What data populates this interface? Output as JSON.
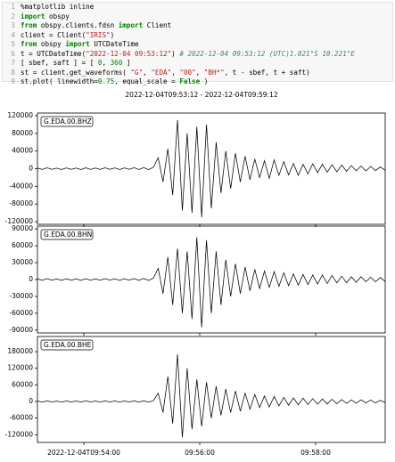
{
  "code": {
    "line_numbers": [
      "1",
      "2",
      "3",
      "4",
      "5",
      "6",
      "7",
      "8",
      "9"
    ],
    "lines": [
      [
        {
          "t": "%matplotlib inline",
          "s": "plain"
        }
      ],
      [
        {
          "t": "import",
          "s": "kw"
        },
        {
          "t": " obspy",
          "s": "plain"
        }
      ],
      [
        {
          "t": "from",
          "s": "kw"
        },
        {
          "t": " obspy.clients.fdsn ",
          "s": "plain"
        },
        {
          "t": "import",
          "s": "kw"
        },
        {
          "t": " Client",
          "s": "plain"
        }
      ],
      [
        {
          "t": "client = Client(",
          "s": "plain"
        },
        {
          "t": "\"IRIS\"",
          "s": "str"
        },
        {
          "t": ")",
          "s": "plain"
        }
      ],
      [
        {
          "t": "from",
          "s": "kw"
        },
        {
          "t": " obspy ",
          "s": "plain"
        },
        {
          "t": "import",
          "s": "kw"
        },
        {
          "t": " UTCDateTime",
          "s": "plain"
        }
      ],
      [
        {
          "t": "t = UTCDateTime(",
          "s": "plain"
        },
        {
          "t": "\"2022-12-04 09:53:12\"",
          "s": "str"
        },
        {
          "t": ") ",
          "s": "plain"
        },
        {
          "t": "# 2022-12-04 09:53:12 (UTC)1.021°S 10.221°E",
          "s": "com"
        }
      ],
      [
        {
          "t": "[ sbef, saft ] = [ ",
          "s": "plain"
        },
        {
          "t": "0",
          "s": "num"
        },
        {
          "t": ", ",
          "s": "plain"
        },
        {
          "t": "360",
          "s": "num"
        },
        {
          "t": " ]",
          "s": "plain"
        }
      ],
      [
        {
          "t": "st = client.get_waveforms( ",
          "s": "plain"
        },
        {
          "t": "\"G\"",
          "s": "str"
        },
        {
          "t": ", ",
          "s": "plain"
        },
        {
          "t": "\"EDA\"",
          "s": "str"
        },
        {
          "t": ", ",
          "s": "plain"
        },
        {
          "t": "\"00\"",
          "s": "str"
        },
        {
          "t": ", ",
          "s": "plain"
        },
        {
          "t": "\"BH*\"",
          "s": "str"
        },
        {
          "t": ", t - sbef, t + saft)",
          "s": "plain"
        }
      ],
      [
        {
          "t": "st.plot( linewidth=",
          "s": "plain"
        },
        {
          "t": "0.75",
          "s": "num"
        },
        {
          "t": ", equal_scale = ",
          "s": "plain"
        },
        {
          "t": "False",
          "s": "kw"
        },
        {
          "t": " )",
          "s": "plain"
        }
      ]
    ]
  },
  "chart_data": [
    {
      "type": "line",
      "title": "2022-12-04T09:53:12 - 2022-12-04T09:59:12",
      "label": "G.EDA.00.BHZ",
      "color": "#000000",
      "xlim": [
        "2022-12-04T09:53:12",
        "2022-12-04T09:59:12"
      ],
      "xticks": [
        "2022-12-04T09:54:00",
        {
          "value": "2022-12-04T09:56:00",
          "label": "09:56:00"
        },
        {
          "value": "2022-12-04T09:58:00",
          "label": "09:58:00"
        }
      ],
      "ylim": [
        -126000,
        126000
      ],
      "yticks": [
        -120000,
        -80000,
        -40000,
        0,
        40000,
        80000,
        120000
      ],
      "values": [
        1500,
        -1800,
        2000,
        -1500,
        1200,
        -2000,
        1800,
        -1600,
        1500,
        -1900,
        2000,
        -1700,
        1600,
        -1800,
        2100,
        -1500,
        1700,
        -2000,
        1800,
        -1600,
        2200,
        -1900,
        2500,
        -2200,
        3000,
        25000,
        -30000,
        45000,
        -60000,
        110000,
        -95000,
        80000,
        -100000,
        95000,
        -110000,
        100000,
        -90000,
        60000,
        -55000,
        40000,
        -45000,
        35000,
        -30000,
        28000,
        -25000,
        22000,
        -20000,
        18000,
        -22000,
        20000,
        -15000,
        16000,
        -14000,
        12000,
        -15000,
        10000,
        -12000,
        11000,
        -9000,
        10000,
        -8000,
        9000,
        -7000,
        8000,
        -6000,
        7000,
        -5000,
        6000,
        -5000,
        5000,
        -4000,
        4000,
        -4000
      ]
    },
    {
      "type": "line",
      "label": "G.EDA.00.BHN",
      "color": "#000000",
      "xlim": [
        "2022-12-04T09:53:12",
        "2022-12-04T09:59:12"
      ],
      "xticks": [
        "2022-12-04T09:54:00",
        {
          "value": "2022-12-04T09:56:00",
          "label": "09:56:00"
        },
        {
          "value": "2022-12-04T09:58:00",
          "label": "09:58:00"
        }
      ],
      "ylim": [
        -95000,
        95000
      ],
      "yticks": [
        -90000,
        -60000,
        -30000,
        0,
        30000,
        60000,
        90000
      ],
      "values": [
        1200,
        -1400,
        1500,
        -1200,
        1000,
        -1500,
        1400,
        -1300,
        1200,
        -1500,
        1600,
        -1300,
        1200,
        -1400,
        1600,
        -1200,
        1300,
        -1500,
        1400,
        -1200,
        1700,
        -1500,
        2000,
        -1700,
        2500,
        20000,
        -25000,
        40000,
        -45000,
        55000,
        -60000,
        50000,
        -70000,
        75000,
        -85000,
        70000,
        -60000,
        50000,
        -45000,
        35000,
        -30000,
        28000,
        -25000,
        22000,
        -20000,
        18000,
        -16000,
        15000,
        -14000,
        14000,
        -12000,
        12000,
        -11000,
        10000,
        -10000,
        9000,
        -9000,
        8000,
        -8000,
        8000,
        -7000,
        7000,
        -6000,
        6000,
        -6000,
        5000,
        -5000,
        5000,
        -4000,
        4000,
        -4000,
        3500,
        -3500
      ]
    },
    {
      "type": "line",
      "label": "G.EDA.00.BHE",
      "color": "#000000",
      "xlim": [
        "2022-12-04T09:53:12",
        "2022-12-04T09:59:12"
      ],
      "xticks": [
        "2022-12-04T09:54:00",
        {
          "value": "2022-12-04T09:56:00",
          "label": "09:56:00"
        },
        {
          "value": "2022-12-04T09:58:00",
          "label": "09:58:00"
        }
      ],
      "ylim": [
        -148000,
        235000
      ],
      "yticks": [
        -120000,
        -60000,
        0,
        60000,
        120000,
        180000
      ],
      "values": [
        1500,
        -1800,
        2000,
        -1500,
        1200,
        -2000,
        1800,
        -1600,
        1500,
        -1900,
        2000,
        -1700,
        1600,
        -1800,
        2100,
        -1500,
        1700,
        -2000,
        1800,
        -1600,
        2200,
        -1900,
        2500,
        -2200,
        3000,
        30000,
        -40000,
        90000,
        -80000,
        170000,
        -130000,
        120000,
        -100000,
        80000,
        -90000,
        70000,
        -60000,
        55000,
        -50000,
        45000,
        -40000,
        38000,
        -35000,
        30000,
        -28000,
        25000,
        -22000,
        20000,
        -20000,
        18000,
        -16000,
        15000,
        -14000,
        13000,
        -12000,
        12000,
        -11000,
        10000,
        -10000,
        9000,
        -9000,
        8000,
        -8000,
        7000,
        -7000,
        6000,
        -6000,
        6000,
        -5000,
        5000,
        -5000,
        4000,
        -4000
      ]
    }
  ]
}
